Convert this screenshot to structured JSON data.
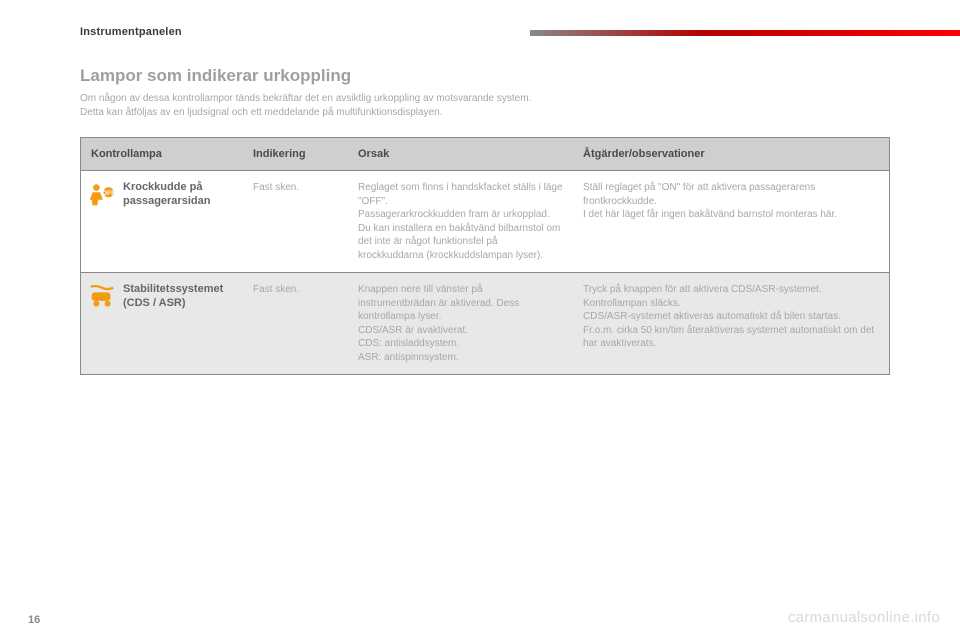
{
  "section_label": "Instrumentpanelen",
  "title": "Lampor som indikerar urkoppling",
  "intro_line1": "Om någon av dessa kontrollampor tänds bekräftar det en avsiktlig urkoppling av motsvarande system.",
  "intro_line2": "Detta kan åtföljas av en ljudsignal och ett meddelande på multifunktionsdisplayen.",
  "headers": {
    "lamp": "Kontrollampa",
    "indication": "Indikering",
    "cause": "Orsak",
    "action": "Åtgärder/observationer"
  },
  "rows": [
    {
      "icon_name": "airbag-off-icon",
      "icon_color": "#f39c12",
      "name": "Krockkudde på passagerarsidan",
      "indication": "Fast sken.",
      "cause": "Reglaget som finns i handskfacket ställs i läge \"OFF\".\nPassagerarkrockkudden fram är urkopplad.\nDu kan installera en bakåtvänd bilbarnstol om det inte är något funktionsfel på krockkuddarna (krockkuddslampan lyser).",
      "action": "Ställ reglaget på \"ON\" för att aktivera passagerarens frontkrockkudde.\nI det här läget får ingen bakåtvänd barnstol monteras här."
    },
    {
      "icon_name": "stability-off-icon",
      "icon_color": "#f39c12",
      "name": "Stabilitetssystemet\n(CDS / ASR)",
      "indication": "Fast sken.",
      "cause": "Knappen nere till vänster på instrumentbrädan är aktiverad. Dess kontrollampa lyser.\nCDS/ASR är avaktiverat.\nCDS: antisladdsystem.\nASR: antispinnsystem.",
      "action": "Tryck på knappen för att aktivera CDS/ASR-systemet. Kontrollampan släcks.\nCDS/ASR-systemet aktiveras automatiskt då bilen startas.\nFr.o.m. cirka 50 km/tim återaktiveras systemet automatiskt om det har avaktiverats."
    }
  ],
  "page_number": "16",
  "watermark": "carmanualsonline.info",
  "colors": {
    "header_bg": "#cfcfcf",
    "alt_row_bg": "#e8e8e8",
    "icon": "#f39c12",
    "text_body": "#a7a7a7",
    "text_heading": "#4a4a4a",
    "border": "#8a8a8a"
  }
}
